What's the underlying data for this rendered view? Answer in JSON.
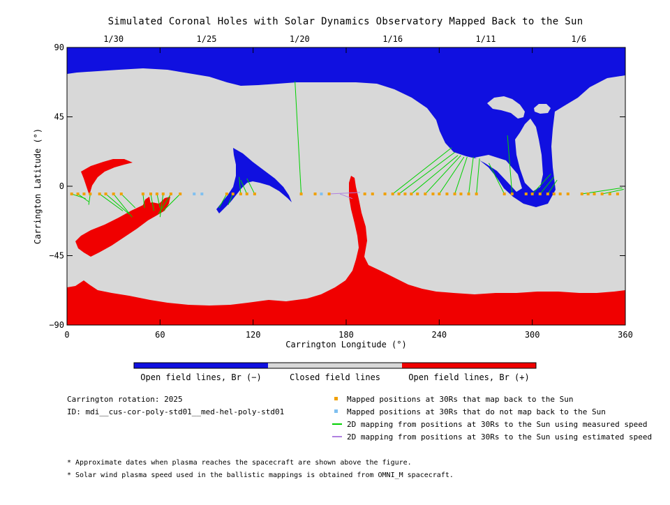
{
  "title": "Simulated Coronal Holes with Solar Dynamics Observatory Mapped Back to the Sun",
  "chart_data": {
    "type": "scatter",
    "xlabel": "Carrington Longitude (°)",
    "ylabel": "Carrington Latitude (°)",
    "xlim": [
      0,
      360
    ],
    "ylim": [
      -90,
      90
    ],
    "x_ticks": [
      0,
      60,
      120,
      180,
      240,
      300,
      360
    ],
    "y_ticks": [
      90,
      45,
      0,
      -45,
      -90
    ],
    "y_tick_labels": [
      "90",
      "45",
      "0",
      "−45",
      "−90"
    ],
    "top_axis": {
      "labels": [
        "1/30",
        "1/25",
        "1/20",
        "1/16",
        "1/11",
        "1/6"
      ],
      "longitudes": [
        30,
        90,
        150,
        210,
        270,
        330
      ]
    },
    "mapped_points_30Rs": [
      {
        "lon": 3,
        "lat": -5
      },
      {
        "lon": 7,
        "lat": -5
      },
      {
        "lon": 11,
        "lat": -5
      },
      {
        "lon": 15,
        "lat": -5
      },
      {
        "lon": 21,
        "lat": -5
      },
      {
        "lon": 25,
        "lat": -5
      },
      {
        "lon": 30,
        "lat": -5
      },
      {
        "lon": 35,
        "lat": -5
      },
      {
        "lon": 49,
        "lat": -5
      },
      {
        "lon": 54,
        "lat": -5
      },
      {
        "lon": 58,
        "lat": -5
      },
      {
        "lon": 62,
        "lat": -5
      },
      {
        "lon": 67,
        "lat": -5
      },
      {
        "lon": 73,
        "lat": -5
      },
      {
        "lon": 103,
        "lat": -5
      },
      {
        "lon": 107,
        "lat": -5
      },
      {
        "lon": 112,
        "lat": -5
      },
      {
        "lon": 116,
        "lat": -5
      },
      {
        "lon": 121,
        "lat": -5
      },
      {
        "lon": 151,
        "lat": -5
      },
      {
        "lon": 160,
        "lat": -5
      },
      {
        "lon": 169,
        "lat": -5
      },
      {
        "lon": 192,
        "lat": -5
      },
      {
        "lon": 197,
        "lat": -5
      },
      {
        "lon": 205,
        "lat": -5
      },
      {
        "lon": 210,
        "lat": -5
      },
      {
        "lon": 214,
        "lat": -5
      },
      {
        "lon": 218,
        "lat": -5
      },
      {
        "lon": 222,
        "lat": -5
      },
      {
        "lon": 226,
        "lat": -5
      },
      {
        "lon": 231,
        "lat": -5
      },
      {
        "lon": 236,
        "lat": -5
      },
      {
        "lon": 240,
        "lat": -5
      },
      {
        "lon": 245,
        "lat": -5
      },
      {
        "lon": 250,
        "lat": -5
      },
      {
        "lon": 254,
        "lat": -5
      },
      {
        "lon": 259,
        "lat": -5
      },
      {
        "lon": 264,
        "lat": -5
      },
      {
        "lon": 282,
        "lat": -5
      },
      {
        "lon": 287,
        "lat": -5
      },
      {
        "lon": 296,
        "lat": -5
      },
      {
        "lon": 300,
        "lat": -5
      },
      {
        "lon": 305,
        "lat": -5
      },
      {
        "lon": 310,
        "lat": -5
      },
      {
        "lon": 314,
        "lat": -5
      },
      {
        "lon": 318,
        "lat": -5
      },
      {
        "lon": 323,
        "lat": -5
      },
      {
        "lon": 332,
        "lat": -5
      },
      {
        "lon": 336,
        "lat": -5
      },
      {
        "lon": 340,
        "lat": -5
      },
      {
        "lon": 345,
        "lat": -5
      },
      {
        "lon": 350,
        "lat": -5
      },
      {
        "lon": 355,
        "lat": -5
      }
    ],
    "unmapped_points_30Rs": [
      {
        "lon": 82,
        "lat": -5
      },
      {
        "lon": 87,
        "lat": -5
      },
      {
        "lon": 164,
        "lat": -5
      }
    ],
    "measured_speed_mappings": [
      {
        "from": [
          3,
          -5
        ],
        "to": [
          12,
          -8
        ]
      },
      {
        "from": [
          7,
          -5
        ],
        "to": [
          14,
          -10
        ]
      },
      {
        "from": [
          15,
          -5
        ],
        "to": [
          14,
          -12
        ]
      },
      {
        "from": [
          21,
          -5
        ],
        "to": [
          36,
          -16
        ]
      },
      {
        "from": [
          25,
          -5
        ],
        "to": [
          40,
          -18
        ]
      },
      {
        "from": [
          30,
          -5
        ],
        "to": [
          42,
          -20
        ]
      },
      {
        "from": [
          35,
          -5
        ],
        "to": [
          44,
          -14
        ]
      },
      {
        "from": [
          49,
          -5
        ],
        "to": [
          50,
          -14
        ]
      },
      {
        "from": [
          54,
          -5
        ],
        "to": [
          56,
          -16
        ]
      },
      {
        "from": [
          58,
          -5
        ],
        "to": [
          60,
          -14
        ]
      },
      {
        "from": [
          62,
          -5
        ],
        "to": [
          60,
          -20
        ]
      },
      {
        "from": [
          67,
          -5
        ],
        "to": [
          59,
          -18
        ]
      },
      {
        "from": [
          73,
          -5
        ],
        "to": [
          62,
          -16
        ]
      },
      {
        "from": [
          103,
          -5
        ],
        "to": [
          98,
          -14
        ]
      },
      {
        "from": [
          107,
          -5
        ],
        "to": [
          104,
          -12
        ]
      },
      {
        "from": [
          112,
          -5
        ],
        "to": [
          111,
          6
        ]
      },
      {
        "from": [
          116,
          -5
        ],
        "to": [
          112,
          4
        ]
      },
      {
        "from": [
          121,
          -5
        ],
        "to": [
          116,
          5
        ]
      },
      {
        "from": [
          151,
          -5
        ],
        "to": [
          147,
          68
        ]
      },
      {
        "from": [
          210,
          -5
        ],
        "to": [
          248,
          25
        ]
      },
      {
        "from": [
          214,
          -5
        ],
        "to": [
          250,
          22
        ]
      },
      {
        "from": [
          222,
          -5
        ],
        "to": [
          252,
          20
        ]
      },
      {
        "from": [
          231,
          -5
        ],
        "to": [
          254,
          20
        ]
      },
      {
        "from": [
          240,
          -5
        ],
        "to": [
          256,
          19
        ]
      },
      {
        "from": [
          250,
          -5
        ],
        "to": [
          258,
          19
        ]
      },
      {
        "from": [
          259,
          -5
        ],
        "to": [
          262,
          19
        ]
      },
      {
        "from": [
          264,
          -5
        ],
        "to": [
          266,
          18
        ]
      },
      {
        "from": [
          282,
          -5
        ],
        "to": [
          272,
          15
        ]
      },
      {
        "from": [
          287,
          -5
        ],
        "to": [
          284,
          33
        ]
      },
      {
        "from": [
          300,
          -5
        ],
        "to": [
          312,
          8
        ]
      },
      {
        "from": [
          305,
          -5
        ],
        "to": [
          314,
          6
        ]
      },
      {
        "from": [
          310,
          -5
        ],
        "to": [
          316,
          4
        ]
      },
      {
        "from": [
          332,
          -5
        ],
        "to": [
          358,
          -1
        ]
      },
      {
        "from": [
          345,
          -5
        ],
        "to": [
          359,
          -2
        ]
      }
    ],
    "estimated_speed_mappings": [
      {
        "from": [
          169,
          -5
        ],
        "to": [
          189,
          -4
        ]
      },
      {
        "from": [
          176,
          -5
        ],
        "to": [
          184,
          -8
        ]
      }
    ]
  },
  "colorbar": {
    "colors": [
      "#1010e0",
      "#d8d8d8",
      "#f00000"
    ],
    "labels": [
      "Open field lines, Br (−)",
      "Closed field lines",
      "Open field lines, Br (+)"
    ]
  },
  "info": {
    "rotation": "Carrington rotation: 2025",
    "id": "ID: mdi__cus-cor-poly-std01__med-hel-poly-std01"
  },
  "legend": [
    {
      "label": "Mapped positions at 30Rs that map back to the Sun",
      "color": "#f0a000",
      "kind": "square"
    },
    {
      "label": "Mapped positions at 30Rs that do not map back to the Sun",
      "color": "#80c0f0",
      "kind": "square"
    },
    {
      "label": "2D mapping from positions at 30Rs to the Sun using measured speed",
      "color": "#00d000",
      "kind": "line"
    },
    {
      "label": "2D mapping from positions at 30Rs to the Sun using estimated speed",
      "color": "#b080e0",
      "kind": "line"
    }
  ],
  "notes": [
    "* Approximate dates when plasma reaches the spacecraft are shown above the figure.",
    "* Solar wind plasma speed used in the ballistic mappings is obtained from OMNI_M spacecraft."
  ]
}
